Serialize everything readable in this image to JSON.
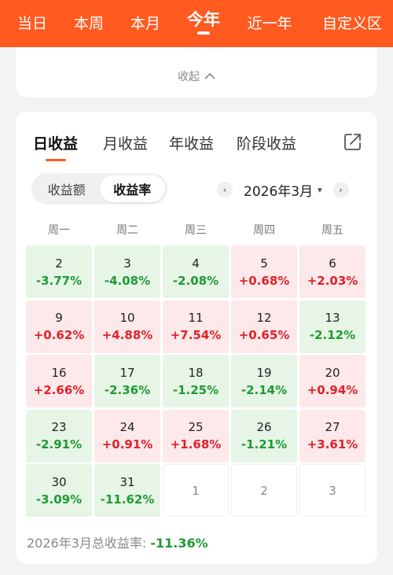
{
  "top_tabs": [
    {
      "label": "当日"
    },
    {
      "label": "本周"
    },
    {
      "label": "本月"
    },
    {
      "label": "今年",
      "active": true
    },
    {
      "label": "近一年"
    },
    {
      "label": "自定义区"
    }
  ],
  "collapse": {
    "label": "收起",
    "icon": "chevron-up-icon"
  },
  "sub_tabs": [
    {
      "label": "日收益",
      "active": true
    },
    {
      "label": "月收益"
    },
    {
      "label": "年收益"
    },
    {
      "label": "阶段收益"
    }
  ],
  "share_icon": "share-icon",
  "toggle": {
    "options": [
      "收益额",
      "收益率"
    ],
    "selected": "收益率"
  },
  "month_nav": {
    "label": "2026年3月",
    "prev": "‹",
    "next": "›",
    "caret": "▾"
  },
  "weekdays": [
    "周一",
    "周二",
    "周三",
    "周四",
    "周五"
  ],
  "calendar": [
    {
      "day": "2",
      "value": "-3.77%"
    },
    {
      "day": "3",
      "value": "-4.08%"
    },
    {
      "day": "4",
      "value": "-2.08%"
    },
    {
      "day": "5",
      "value": "+0.68%"
    },
    {
      "day": "6",
      "value": "+2.03%"
    },
    {
      "day": "9",
      "value": "+0.62%"
    },
    {
      "day": "10",
      "value": "+4.88%"
    },
    {
      "day": "11",
      "value": "+7.54%"
    },
    {
      "day": "12",
      "value": "+0.65%"
    },
    {
      "day": "13",
      "value": "-2.12%"
    },
    {
      "day": "16",
      "value": "+2.66%"
    },
    {
      "day": "17",
      "value": "-2.36%"
    },
    {
      "day": "18",
      "value": "-1.25%"
    },
    {
      "day": "19",
      "value": "-2.14%"
    },
    {
      "day": "20",
      "value": "+0.94%"
    },
    {
      "day": "23",
      "value": "-2.91%"
    },
    {
      "day": "24",
      "value": "+0.91%"
    },
    {
      "day": "25",
      "value": "+1.68%"
    },
    {
      "day": "26",
      "value": "-1.21%"
    },
    {
      "day": "27",
      "value": "+3.61%"
    },
    {
      "day": "30",
      "value": "-3.09%"
    },
    {
      "day": "31",
      "value": "-11.62%"
    },
    {
      "day": "1",
      "value": ""
    },
    {
      "day": "2",
      "value": ""
    },
    {
      "day": "3",
      "value": ""
    }
  ],
  "summary": {
    "label": "2026年3月总收益率:",
    "value": "-11.36%"
  },
  "colors": {
    "brand": "#ff5a1f",
    "gain": "#e0222a",
    "loss": "#1f9a33",
    "gain_bg": "#fde8ea",
    "loss_bg": "#e6f5e6"
  }
}
